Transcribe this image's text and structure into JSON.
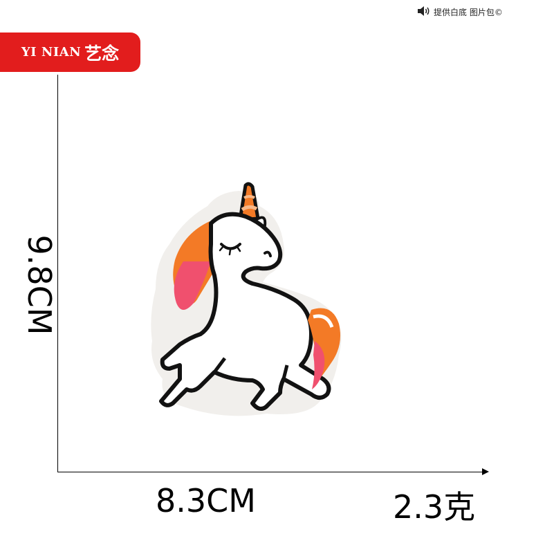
{
  "top_note": {
    "text": "提供白底 图片包©",
    "icon": "speaker-icon"
  },
  "brand": {
    "latin": "YI NIAN",
    "cjk": "艺念",
    "color": "#e21d1d"
  },
  "dimensions": {
    "height_label": "9.8CM",
    "width_label": "8.3CM",
    "weight_label": "2.3克"
  },
  "patch": {
    "subject": "unicorn",
    "colors": {
      "outline": "#121212",
      "body": "#ffffff",
      "mane_orange": "#f37a26",
      "mane_pink": "#f0506e",
      "mane_peach": "#f8b888",
      "felt_edge": "#f1efec"
    }
  }
}
